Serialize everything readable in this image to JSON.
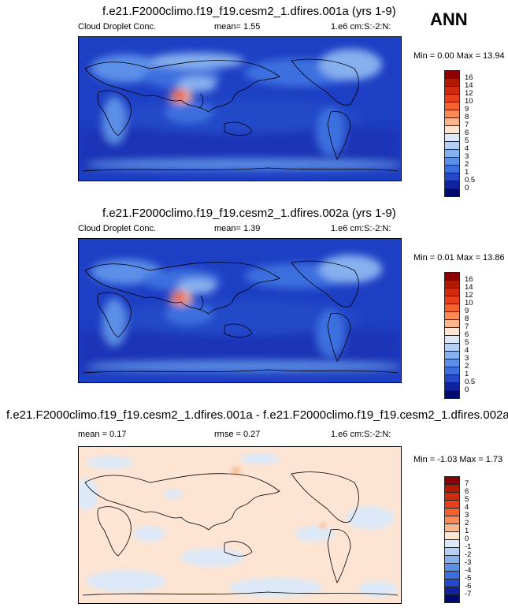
{
  "season": "ANN",
  "panels": [
    {
      "title": "f.e21.F2000climo.f19_f19.cesm2_1.dfires.001a (yrs 1-9)",
      "left_label": "Cloud Droplet Conc.",
      "mean_text": "mean=   1.55",
      "units": "1.e6 cm:S:-2:N:",
      "minmax": "Min =  0.00 Max =  13.94",
      "colorbar_labels": [
        "16",
        "14",
        "12",
        "10",
        "9",
        "8",
        "7",
        "6",
        "5",
        "4",
        "3",
        "2",
        "1",
        "0.5",
        "0"
      ],
      "colors": [
        "#8b0000",
        "#b21a00",
        "#d12b0e",
        "#e8401c",
        "#f4632f",
        "#fb8a56",
        "#fbb58c",
        "#fde4d3",
        "#dde9f8",
        "#b5cff4",
        "#86b0ee",
        "#5b8fe8",
        "#3e6fdf",
        "#2448c8",
        "#10239c",
        "#000a6e"
      ]
    },
    {
      "title": "f.e21.F2000climo.f19_f19.cesm2_1.dfires.002a (yrs 1-9)",
      "left_label": "Cloud Droplet Conc.",
      "mean_text": "mean=   1.39",
      "units": "1.e6 cm:S:-2:N:",
      "minmax": "Min =  0.01 Max =  13.86",
      "colorbar_labels": [
        "16",
        "14",
        "12",
        "10",
        "9",
        "8",
        "7",
        "6",
        "5",
        "4",
        "3",
        "2",
        "1",
        "0.5",
        "0"
      ],
      "colors": [
        "#8b0000",
        "#b21a00",
        "#d12b0e",
        "#e8401c",
        "#f4632f",
        "#fb8a56",
        "#fbb58c",
        "#fde4d3",
        "#dde9f8",
        "#b5cff4",
        "#86b0ee",
        "#5b8fe8",
        "#3e6fdf",
        "#2448c8",
        "#10239c",
        "#000a6e"
      ]
    },
    {
      "title": "f.e21.F2000climo.f19_f19.cesm2_1.dfires.001a - f.e21.F2000climo.f19_f19.cesm2_1.dfires.002a",
      "mean_text": "mean =   0.17",
      "rmse_text": "rmse =   0.27",
      "units": "1.e6 cm:S:-2:N:",
      "minmax": "Min = -1.03 Max =   1.73",
      "colorbar_labels": [
        "7",
        "6",
        "5",
        "4",
        "3",
        "2",
        "1",
        "0",
        "-1",
        "-2",
        "-3",
        "-4",
        "-5",
        "-6",
        "-7"
      ],
      "colors": [
        "#8b0000",
        "#b21a00",
        "#d12b0e",
        "#e8401c",
        "#f4632f",
        "#fb8a56",
        "#fbb58c",
        "#fde4d3",
        "#dde9f8",
        "#b5cff4",
        "#86b0ee",
        "#5b8fe8",
        "#3e6fdf",
        "#2448c8",
        "#10239c",
        "#000a6e"
      ]
    }
  ]
}
